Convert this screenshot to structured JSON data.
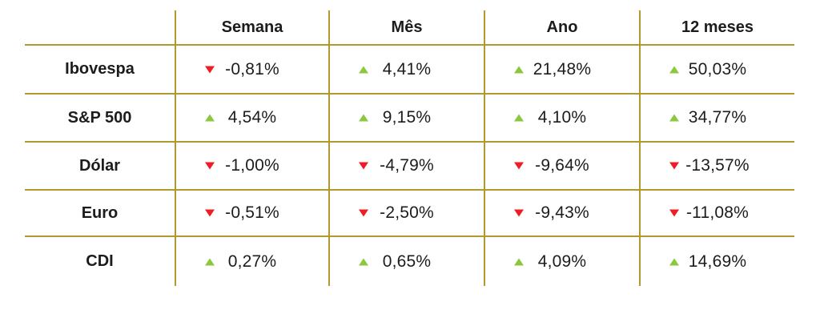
{
  "table": {
    "columns": [
      "Semana",
      "Mês",
      "Ano",
      "12 meses"
    ],
    "rows": [
      {
        "label": "Ibovespa",
        "cells": [
          {
            "direction": "down",
            "value": "-0,81%"
          },
          {
            "direction": "up",
            "value": "4,41%"
          },
          {
            "direction": "up",
            "value": "21,48%"
          },
          {
            "direction": "up",
            "value": "50,03%"
          }
        ]
      },
      {
        "label": "S&P 500",
        "cells": [
          {
            "direction": "up",
            "value": "4,54%"
          },
          {
            "direction": "up",
            "value": "9,15%"
          },
          {
            "direction": "up",
            "value": "4,10%"
          },
          {
            "direction": "up",
            "value": "34,77%"
          }
        ]
      },
      {
        "label": "Dólar",
        "cells": [
          {
            "direction": "down",
            "value": "-1,00%"
          },
          {
            "direction": "down",
            "value": "-4,79%"
          },
          {
            "direction": "down",
            "value": "-9,64%"
          },
          {
            "direction": "down",
            "value": "-13,57%"
          }
        ]
      },
      {
        "label": "Euro",
        "cells": [
          {
            "direction": "down",
            "value": "-0,51%"
          },
          {
            "direction": "down",
            "value": "-2,50%"
          },
          {
            "direction": "down",
            "value": "-9,43%"
          },
          {
            "direction": "down",
            "value": "-11,08%"
          }
        ]
      },
      {
        "label": "CDI",
        "cells": [
          {
            "direction": "up",
            "value": "0,27%"
          },
          {
            "direction": "up",
            "value": "0,65%"
          },
          {
            "direction": "up",
            "value": "4,09%"
          },
          {
            "direction": "up",
            "value": "14,69%"
          }
        ]
      }
    ]
  },
  "chart_data": {
    "type": "table",
    "title": "",
    "columns": [
      "Semana",
      "Mês",
      "Ano",
      "12 meses"
    ],
    "categories": [
      "Ibovespa",
      "S&P 500",
      "Dólar",
      "Euro",
      "CDI"
    ],
    "series": [
      {
        "name": "Ibovespa",
        "values": [
          -0.81,
          4.41,
          21.48,
          50.03
        ]
      },
      {
        "name": "S&P 500",
        "values": [
          4.54,
          9.15,
          4.1,
          34.77
        ]
      },
      {
        "name": "Dólar",
        "values": [
          -1.0,
          -4.79,
          -9.64,
          -13.57
        ]
      },
      {
        "name": "Euro",
        "values": [
          -0.51,
          -2.5,
          -9.43,
          -11.08
        ]
      },
      {
        "name": "CDI",
        "values": [
          0.27,
          0.65,
          4.09,
          14.69
        ]
      }
    ],
    "unit": "%",
    "decimal_separator": ",",
    "legend_position": "none",
    "grid": "partial-gold-rules"
  },
  "icons": {
    "up": "up-triangle-icon",
    "down": "down-triangle-icon"
  },
  "colors": {
    "grid_line": "#b1992d",
    "positive": "#8dc63f",
    "negative": "#ee1c25",
    "text": "#1c1c1c",
    "background": "#ffffff"
  }
}
